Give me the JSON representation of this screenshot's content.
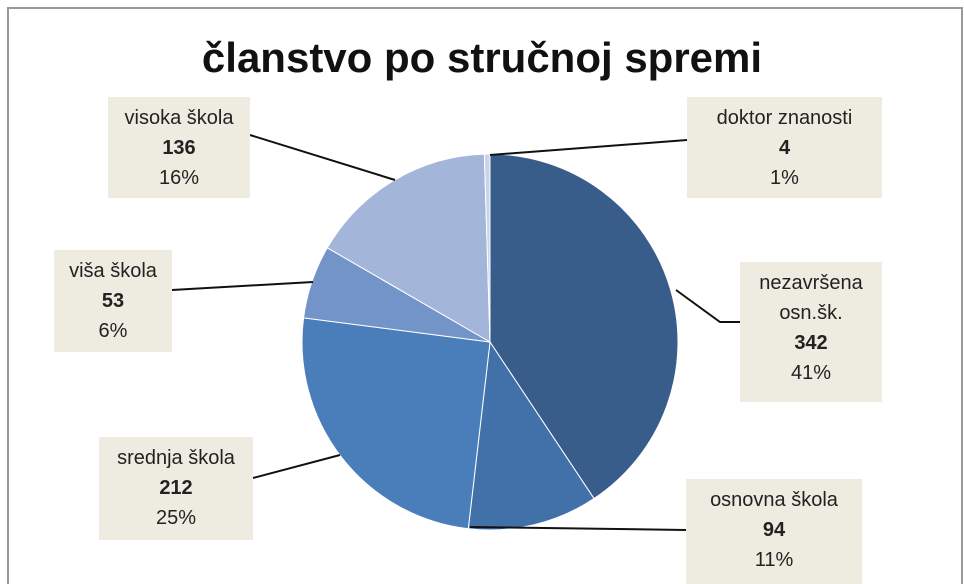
{
  "chart_data": {
    "type": "pie",
    "title": "članstvo po stručnoj spremi",
    "categories": [
      "nezavršena osn.šk.",
      "osnovna škola",
      "srednja škola",
      "viša škola",
      "visoka škola",
      "doktor znanosti"
    ],
    "values": [
      342,
      94,
      212,
      53,
      136,
      4
    ],
    "percent_labels": [
      "41%",
      "11%",
      "25%",
      "6%",
      "16%",
      "1%"
    ],
    "colors": [
      "#385d8a",
      "#4271aa",
      "#4a7ebb",
      "#7394c9",
      "#a3b6d9",
      "#c9d4e9"
    ]
  }
}
